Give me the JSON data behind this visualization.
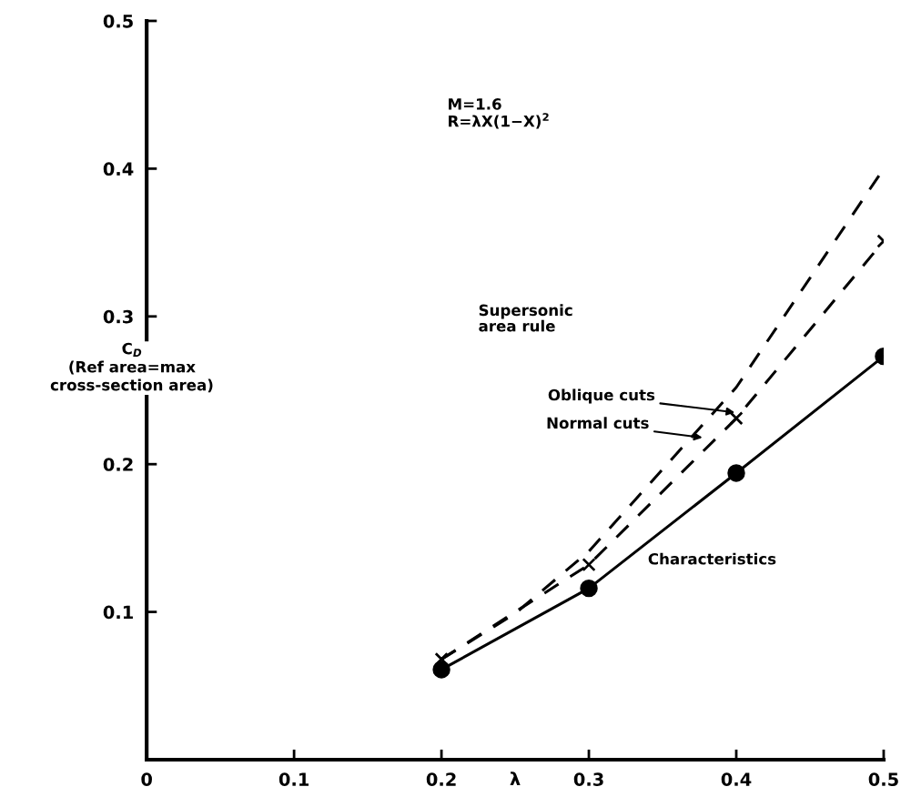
{
  "chart_data": {
    "type": "line",
    "xlabel": "λ",
    "ylabel": "C$_{D}$\n(Ref area=max\ncross-section area)",
    "xlim": [
      0,
      0.5
    ],
    "ylim": [
      0,
      0.5
    ],
    "xticks": [
      0,
      0.1,
      0.2,
      0.3,
      0.4,
      0.5
    ],
    "yticks": [
      0.1,
      0.2,
      0.3,
      0.4,
      0.5
    ],
    "grid": false,
    "legend": false,
    "series": [
      {
        "name": "Characteristics",
        "color": "#000000",
        "marker": "circle",
        "line_style": "solid",
        "x": [
          0.2,
          0.3,
          0.4,
          0.5
        ],
        "values": [
          0.061,
          0.116,
          0.194,
          0.273
        ]
      },
      {
        "name": "Oblique cuts",
        "color": "#000000",
        "marker": "cross",
        "line_style": "dashed",
        "x": [
          0.2,
          0.3,
          0.4,
          0.5
        ],
        "values": [
          0.068,
          0.132,
          0.231,
          0.351
        ]
      },
      {
        "name": "Normal cuts",
        "color": "#000000",
        "marker": "none",
        "line_style": "dashed",
        "x": [
          0.2,
          0.25,
          0.3,
          0.4,
          0.5
        ],
        "values": [
          0.068,
          0.099,
          0.141,
          0.252,
          0.4
        ]
      }
    ],
    "annotations": [
      "M=1.6\nR=λX(1−X)$^{2}$",
      "Supersonic\narea rule"
    ]
  }
}
